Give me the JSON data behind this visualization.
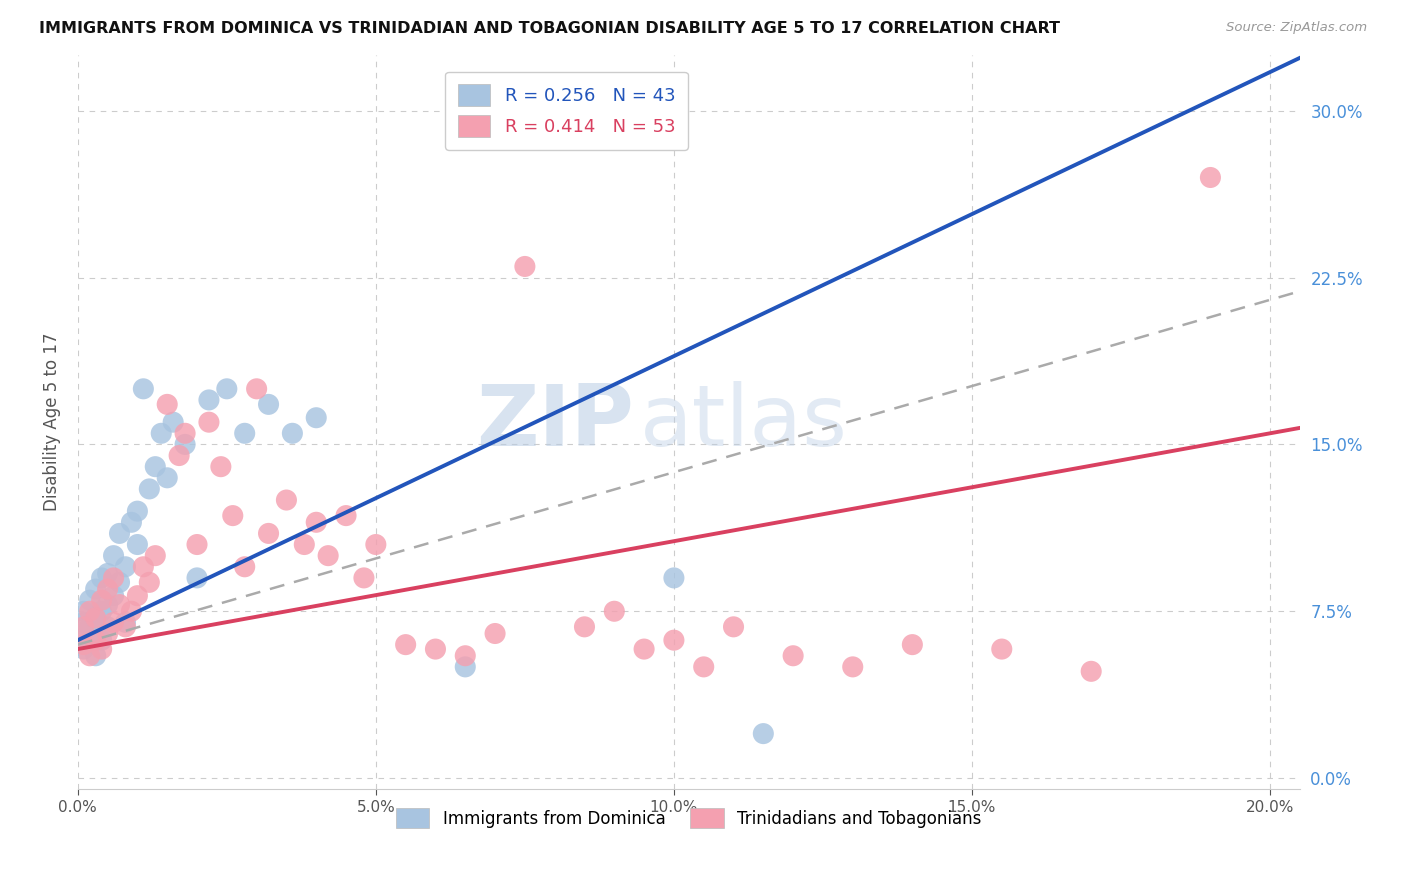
{
  "title": "IMMIGRANTS FROM DOMINICA VS TRINIDADIAN AND TOBAGONIAN DISABILITY AGE 5 TO 17 CORRELATION CHART",
  "source": "Source: ZipAtlas.com",
  "ylabel": "Disability Age 5 to 17",
  "legend_label1": "Immigrants from Dominica",
  "legend_label2": "Trinidadians and Tobagonians",
  "R1": 0.256,
  "N1": 43,
  "R2": 0.414,
  "N2": 53,
  "xlim": [
    0.0,
    0.205
  ],
  "ylim": [
    -0.005,
    0.325
  ],
  "xtick_vals": [
    0.0,
    0.05,
    0.1,
    0.15,
    0.2
  ],
  "ytick_right_vals": [
    0.0,
    0.075,
    0.15,
    0.225,
    0.3
  ],
  "color1": "#a8c4e0",
  "color2": "#f4a0b0",
  "line_color1": "#2255bb",
  "line_color2": "#d94060",
  "dashed_line_color": "#aaaaaa",
  "watermark_zip": "ZIP",
  "watermark_atlas": "atlas",
  "blue_pts_x": [
    0.001,
    0.001,
    0.001,
    0.001,
    0.002,
    0.002,
    0.002,
    0.003,
    0.003,
    0.003,
    0.003,
    0.004,
    0.004,
    0.004,
    0.005,
    0.005,
    0.005,
    0.006,
    0.006,
    0.007,
    0.007,
    0.008,
    0.008,
    0.009,
    0.01,
    0.01,
    0.011,
    0.012,
    0.013,
    0.014,
    0.015,
    0.016,
    0.018,
    0.02,
    0.022,
    0.025,
    0.028,
    0.032,
    0.036,
    0.04,
    0.065,
    0.1,
    0.115
  ],
  "blue_pts_y": [
    0.058,
    0.062,
    0.07,
    0.075,
    0.06,
    0.068,
    0.08,
    0.065,
    0.072,
    0.085,
    0.055,
    0.075,
    0.062,
    0.09,
    0.068,
    0.078,
    0.092,
    0.082,
    0.1,
    0.088,
    0.11,
    0.095,
    0.07,
    0.115,
    0.105,
    0.12,
    0.175,
    0.13,
    0.14,
    0.155,
    0.135,
    0.16,
    0.15,
    0.09,
    0.17,
    0.175,
    0.155,
    0.168,
    0.155,
    0.162,
    0.05,
    0.09,
    0.02
  ],
  "pink_pts_x": [
    0.001,
    0.001,
    0.002,
    0.002,
    0.003,
    0.003,
    0.004,
    0.004,
    0.005,
    0.005,
    0.006,
    0.006,
    0.007,
    0.008,
    0.009,
    0.01,
    0.011,
    0.012,
    0.013,
    0.015,
    0.017,
    0.018,
    0.02,
    0.022,
    0.024,
    0.026,
    0.028,
    0.03,
    0.032,
    0.035,
    0.038,
    0.04,
    0.042,
    0.045,
    0.048,
    0.05,
    0.055,
    0.06,
    0.065,
    0.07,
    0.075,
    0.085,
    0.09,
    0.095,
    0.1,
    0.105,
    0.11,
    0.12,
    0.13,
    0.14,
    0.155,
    0.17,
    0.19
  ],
  "pink_pts_y": [
    0.06,
    0.068,
    0.055,
    0.075,
    0.062,
    0.072,
    0.058,
    0.08,
    0.065,
    0.085,
    0.07,
    0.09,
    0.078,
    0.068,
    0.075,
    0.082,
    0.095,
    0.088,
    0.1,
    0.168,
    0.145,
    0.155,
    0.105,
    0.16,
    0.14,
    0.118,
    0.095,
    0.175,
    0.11,
    0.125,
    0.105,
    0.115,
    0.1,
    0.118,
    0.09,
    0.105,
    0.06,
    0.058,
    0.055,
    0.065,
    0.23,
    0.068,
    0.075,
    0.058,
    0.062,
    0.05,
    0.068,
    0.055,
    0.05,
    0.06,
    0.058,
    0.048,
    0.27
  ],
  "trendline_blue_x0": 0.0,
  "trendline_blue_y0": 0.062,
  "trendline_blue_x1": 0.065,
  "trendline_blue_y1": 0.145,
  "trendline_pink_x0": 0.0,
  "trendline_pink_y0": 0.058,
  "trendline_pink_x1": 0.2,
  "trendline_pink_y1": 0.155,
  "trendline_dash_x0": 0.0,
  "trendline_dash_y0": 0.06,
  "trendline_dash_x1": 0.2,
  "trendline_dash_y1": 0.215
}
